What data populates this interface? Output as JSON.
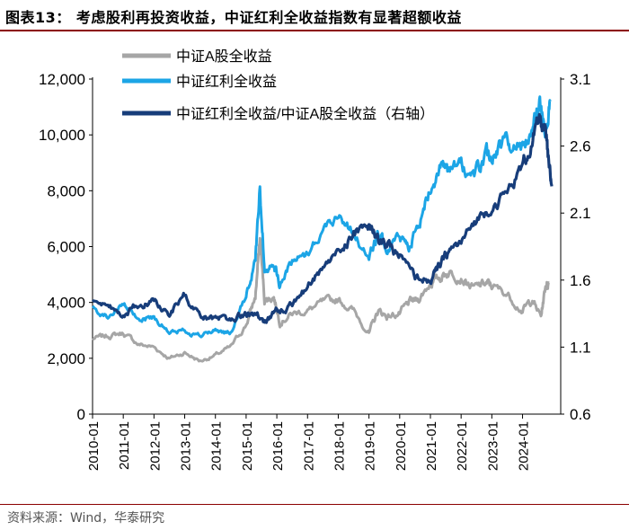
{
  "figure": {
    "title": "图表13：  考虑股利再投资收益，中证红利全收益指数有显著超额收益",
    "source": "资料来源：Wind，华泰研究"
  },
  "chart_data": {
    "type": "line",
    "title": "考虑股利再投资收益，中证红利全收益指数有显著超额收益",
    "x_ticks": [
      "2010-01",
      "2011-01",
      "2012-01",
      "2013-01",
      "2014-01",
      "2015-01",
      "2016-01",
      "2017-01",
      "2018-01",
      "2019-01",
      "2020-01",
      "2021-01",
      "2022-01",
      "2023-01",
      "2024-01"
    ],
    "y_left": {
      "min": 0,
      "max": 12000,
      "ticks": [
        0,
        2000,
        4000,
        6000,
        8000,
        10000,
        12000
      ],
      "tick_labels": [
        "0",
        "2,000",
        "4,000",
        "6,000",
        "8,000",
        "10,000",
        "12,000"
      ]
    },
    "y_right": {
      "min": 0.6,
      "max": 3.1,
      "ticks": [
        0.6,
        1.1,
        1.6,
        2.1,
        2.6,
        3.1
      ],
      "tick_labels": [
        "0.6",
        "1.1",
        "1.6",
        "2.1",
        "2.6",
        "3.1"
      ]
    },
    "legend_position": "top-left",
    "series": [
      {
        "name": "中证A股全收益",
        "axis": "left",
        "color": "#a6a6a6",
        "x": [
          2010.0,
          2010.5,
          2011.0,
          2011.5,
          2012.0,
          2012.5,
          2013.0,
          2013.5,
          2014.0,
          2014.5,
          2015.0,
          2015.3,
          2015.45,
          2015.6,
          2015.9,
          2016.1,
          2016.5,
          2017.0,
          2017.5,
          2018.0,
          2018.5,
          2019.0,
          2019.3,
          2019.6,
          2020.0,
          2020.3,
          2020.6,
          2021.0,
          2021.3,
          2021.6,
          2022.0,
          2022.4,
          2022.8,
          2023.0,
          2023.5,
          2024.0,
          2024.3,
          2024.6,
          2024.75,
          2024.85
        ],
        "y": [
          2700,
          2800,
          2900,
          2500,
          2400,
          2000,
          2200,
          1900,
          2100,
          2400,
          3200,
          4200,
          6300,
          4100,
          4200,
          3300,
          3600,
          3700,
          4000,
          4100,
          3700,
          2900,
          3700,
          3500,
          3600,
          4000,
          4100,
          4700,
          4900,
          5100,
          4900,
          4500,
          4700,
          4600,
          4300,
          3700,
          4100,
          3500,
          4600,
          4700
        ]
      },
      {
        "name": "中证红利全收益",
        "axis": "left",
        "color": "#1ca5e6",
        "x": [
          2010.0,
          2010.5,
          2011.0,
          2011.5,
          2012.0,
          2012.5,
          2013.0,
          2013.5,
          2014.0,
          2014.5,
          2015.0,
          2015.3,
          2015.45,
          2015.6,
          2015.9,
          2016.1,
          2016.5,
          2017.0,
          2017.5,
          2018.0,
          2018.5,
          2019.0,
          2019.3,
          2019.6,
          2020.0,
          2020.3,
          2020.6,
          2021.0,
          2021.3,
          2021.6,
          2022.0,
          2022.4,
          2022.8,
          2023.0,
          2023.3,
          2023.6,
          2024.0,
          2024.3,
          2024.55,
          2024.75,
          2024.9
        ],
        "y": [
          3800,
          3500,
          3900,
          3400,
          3500,
          2900,
          3000,
          2800,
          3000,
          2900,
          4200,
          5500,
          8200,
          5200,
          5500,
          4600,
          5500,
          5800,
          6600,
          7200,
          6500,
          5600,
          6400,
          6000,
          6300,
          6100,
          6600,
          8200,
          8800,
          8600,
          8900,
          8500,
          9200,
          9300,
          9600,
          9700,
          9500,
          10300,
          11000,
          10200,
          11200
        ]
      },
      {
        "name": "中证红利全收益/中证A股全收益（右轴）",
        "axis": "right",
        "color": "#173d7a",
        "x": [
          2010.0,
          2010.5,
          2011.0,
          2011.5,
          2012.0,
          2012.5,
          2013.0,
          2013.5,
          2014.0,
          2014.5,
          2015.0,
          2015.3,
          2015.6,
          2016.0,
          2016.5,
          2017.0,
          2017.5,
          2018.0,
          2018.5,
          2019.0,
          2019.3,
          2019.6,
          2020.0,
          2020.5,
          2021.0,
          2021.3,
          2021.6,
          2022.0,
          2022.5,
          2023.0,
          2023.5,
          2024.0,
          2024.3,
          2024.55,
          2024.75,
          2024.85,
          2024.95
        ],
        "y": [
          1.45,
          1.38,
          1.35,
          1.42,
          1.45,
          1.35,
          1.48,
          1.32,
          1.3,
          1.32,
          1.35,
          1.34,
          1.28,
          1.37,
          1.42,
          1.55,
          1.7,
          1.8,
          1.95,
          2.0,
          1.9,
          1.85,
          1.78,
          1.62,
          1.6,
          1.7,
          1.82,
          1.88,
          2.05,
          2.15,
          2.25,
          2.45,
          2.62,
          2.8,
          2.7,
          2.45,
          2.3
        ]
      }
    ]
  }
}
